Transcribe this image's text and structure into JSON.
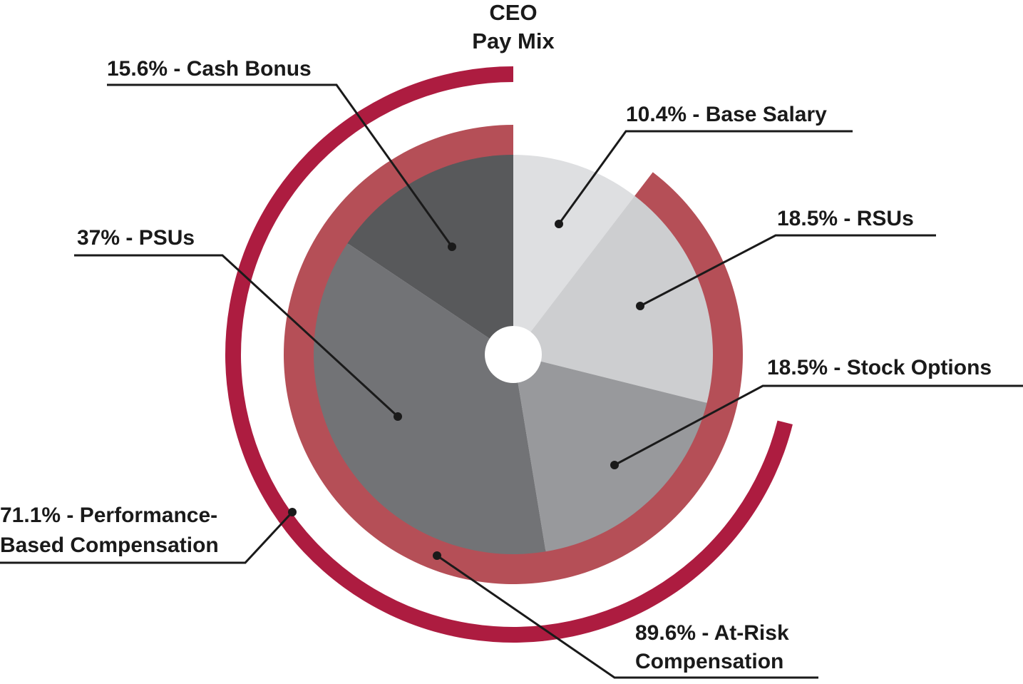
{
  "chart_data": {
    "type": "pie",
    "title_lines": [
      "CEO",
      "Pay Mix"
    ],
    "slices": [
      {
        "label": "10.4% - Base Salary",
        "name": "Base Salary",
        "value": 10.4,
        "color": "#dedfe1"
      },
      {
        "label": "18.5% - RSUs",
        "name": "RSUs",
        "value": 18.5,
        "color": "#cdced0"
      },
      {
        "label": "18.5% - Stock Options",
        "name": "Stock Options",
        "value": 18.5,
        "color": "#98999c"
      },
      {
        "label": "37% - PSUs",
        "name": "PSUs",
        "value": 37,
        "color": "#727376"
      },
      {
        "label": "15.6% - Cash Bonus",
        "name": "Cash Bonus",
        "value": 15.6,
        "color": "#58595b"
      }
    ],
    "rings": [
      {
        "label_lines": [
          "89.6% - At-Risk",
          "Compensation"
        ],
        "value": 89.6,
        "color": "#b54f57",
        "covers": [
          "RSUs",
          "Stock Options",
          "PSUs",
          "Cash Bonus"
        ]
      },
      {
        "label_lines": [
          "71.1% - Performance-",
          "Based Compensation"
        ],
        "value": 71.1,
        "color": "#ad1c40",
        "covers": [
          "Stock Options",
          "PSUs",
          "Cash Bonus"
        ]
      }
    ]
  }
}
